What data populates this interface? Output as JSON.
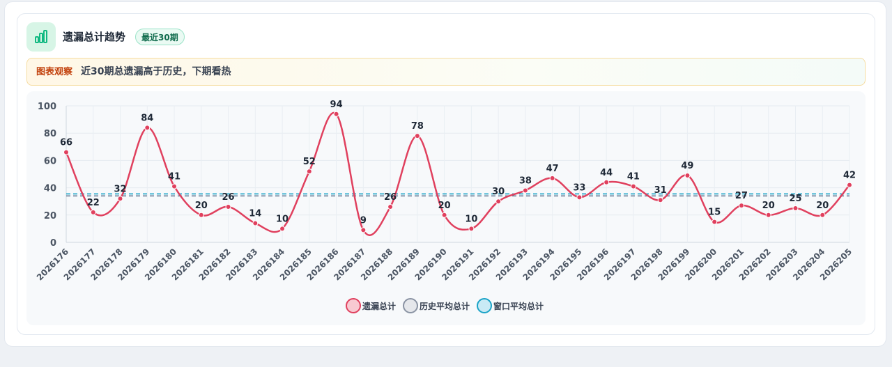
{
  "header": {
    "title": "遗漏总计趋势",
    "badge": "最近30期",
    "icon": "bar-chart-icon"
  },
  "note": {
    "tag": "图表观察",
    "text": "近30期总遗漏高于历史，下期看热"
  },
  "colors": {
    "series": "#e0405e",
    "history_avg": "#6b7f99",
    "window_avg": "#1aa3c7",
    "accent": "#10b981"
  },
  "legend": [
    {
      "label": "遗漏总计",
      "fill": "#f8c9d1",
      "stroke": "#e0405e"
    },
    {
      "label": "历史平均总计",
      "fill": "#e5e7eb",
      "stroke": "#8a93a3"
    },
    {
      "label": "窗口平均总计",
      "fill": "#c9eaf5",
      "stroke": "#1aa3c7"
    }
  ],
  "chart_data": {
    "type": "line",
    "x": [
      "2026176",
      "2026177",
      "2026178",
      "2026179",
      "2026180",
      "2026181",
      "2026182",
      "2026183",
      "2026184",
      "2026185",
      "2026186",
      "2026187",
      "2026188",
      "2026189",
      "2026190",
      "2026191",
      "2026192",
      "2026193",
      "2026194",
      "2026195",
      "2026196",
      "2026197",
      "2026198",
      "2026199",
      "2026200",
      "2026201",
      "2026202",
      "2026203",
      "2026204",
      "2026205"
    ],
    "series": [
      {
        "name": "遗漏总计",
        "values": [
          66,
          22,
          32,
          84,
          41,
          20,
          26,
          14,
          10,
          52,
          94,
          9,
          26,
          78,
          20,
          10,
          30,
          38,
          47,
          33,
          44,
          41,
          31,
          49,
          15,
          27,
          20,
          25,
          20,
          42
        ]
      }
    ],
    "reference_lines": [
      {
        "name": "历史平均总计",
        "value": 34
      },
      {
        "name": "窗口平均总计",
        "value": 35.5
      }
    ],
    "ylim": [
      0,
      100
    ],
    "yticks": [
      0,
      20,
      40,
      60,
      80,
      100
    ],
    "grid": true,
    "legend_position": "bottom"
  }
}
